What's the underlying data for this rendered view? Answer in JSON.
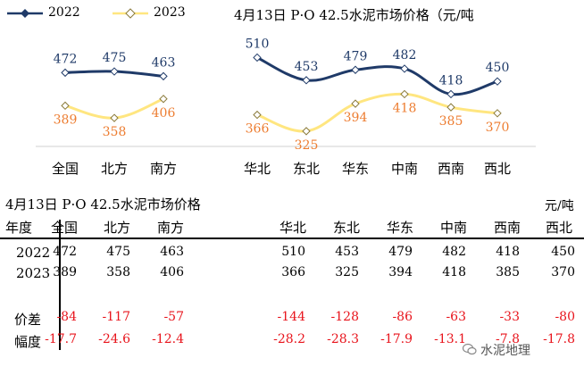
{
  "chart_data": {
    "type": "line",
    "title": "4月13日 P·O 42.5水泥市场价格（元/吨",
    "legend": [
      "2022",
      "2023"
    ],
    "groups": [
      {
        "name": "national",
        "categories": [
          "全国",
          "北方",
          "南方"
        ],
        "series": [
          {
            "name": "2022",
            "values": [
              472,
              475,
              463
            ]
          },
          {
            "name": "2023",
            "values": [
              389,
              358,
              406
            ]
          }
        ]
      },
      {
        "name": "regional",
        "categories": [
          "华北",
          "东北",
          "华东",
          "中南",
          "西南",
          "西北"
        ],
        "series": [
          {
            "name": "2022",
            "values": [
              510,
              453,
              479,
              482,
              418,
              450
            ]
          },
          {
            "name": "2023",
            "values": [
              366,
              325,
              394,
              418,
              385,
              370
            ]
          }
        ]
      }
    ],
    "colors": {
      "2022": "#1f3a68",
      "2023": "#ffe680",
      "label2022": "#1f3a68",
      "label2023": "#ed7d31"
    },
    "grid": false
  },
  "table": {
    "title": "4月13日 P·O 42.5水泥市场价格",
    "unit": "元/吨",
    "header_label": "年度",
    "headers": [
      "全国",
      "北方",
      "南方",
      "华北",
      "东北",
      "华东",
      "中南",
      "西南",
      "西北"
    ],
    "rows": [
      {
        "label": "2022",
        "values": [
          "472",
          "475",
          "463",
          "510",
          "453",
          "479",
          "482",
          "418",
          "450"
        ]
      },
      {
        "label": "2023",
        "values": [
          "389",
          "358",
          "406",
          "366",
          "325",
          "394",
          "418",
          "385",
          "370"
        ]
      },
      {
        "label": "价差",
        "values": [
          "-84",
          "-117",
          "-57",
          "-144",
          "-128",
          "-86",
          "-63",
          "-33",
          "-80"
        ]
      },
      {
        "label": "幅度",
        "values": [
          "-17.7",
          "-24.6",
          "-12.4",
          "-28.2",
          "-28.3",
          "-17.9",
          "-13.1",
          "-7.8",
          "-17.8"
        ]
      }
    ]
  },
  "watermark": "水泥地理"
}
